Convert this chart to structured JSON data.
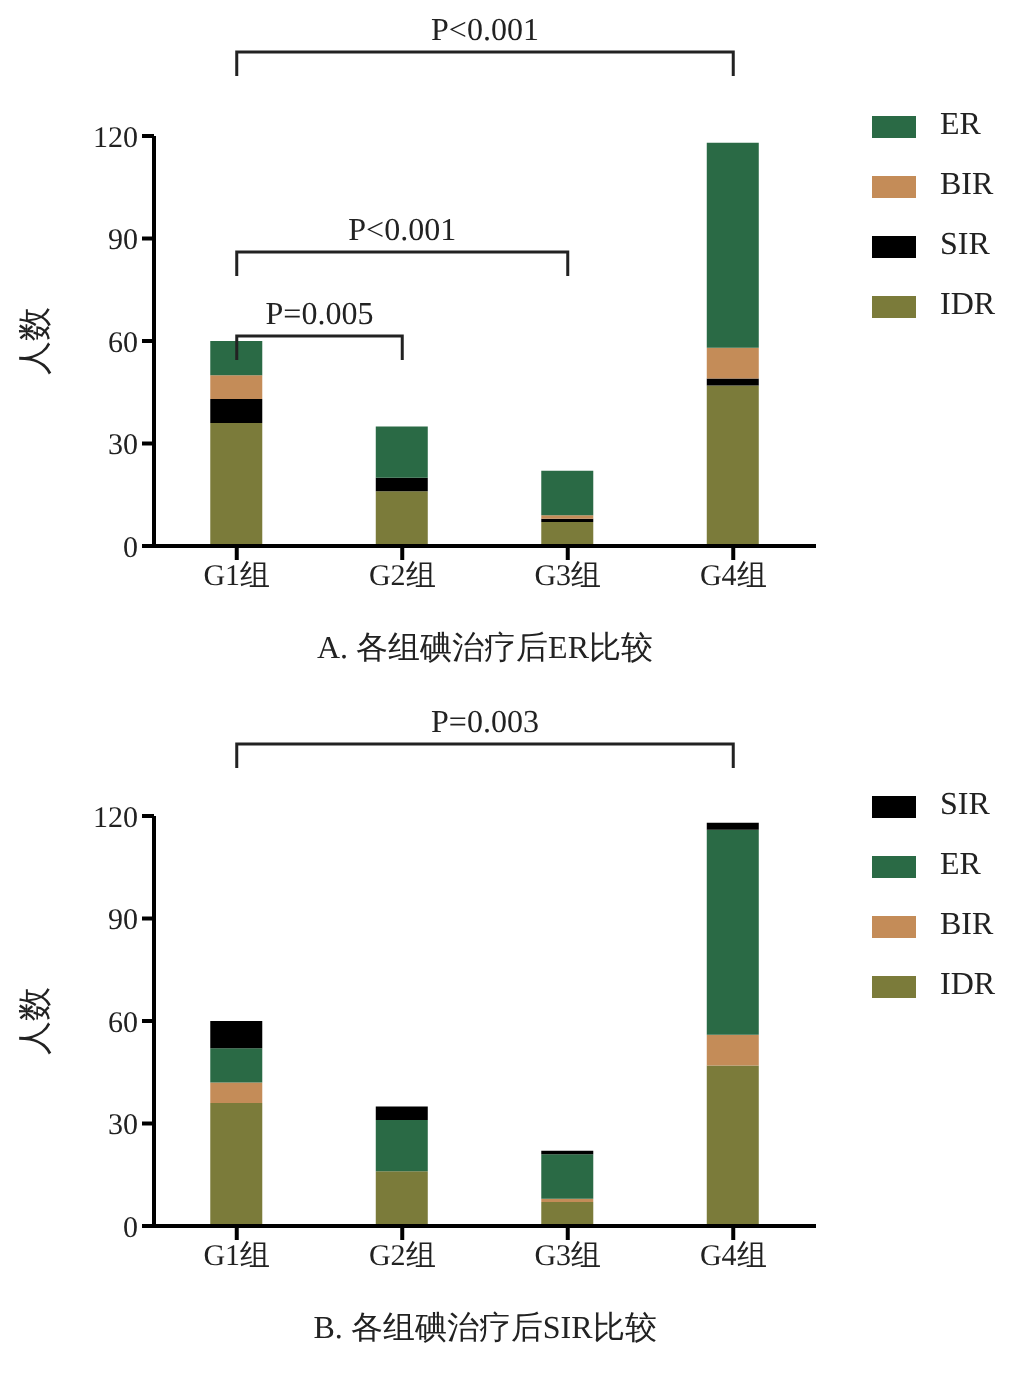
{
  "chart_data": [
    {
      "type": "bar",
      "title": "A. 各组碘治疗后ER比较",
      "ylabel": "人数",
      "categories": [
        "G1组",
        "G2组",
        "G3组",
        "G4组"
      ],
      "stacked": true,
      "series": [
        {
          "name": "IDR",
          "color": "#7b7b3a",
          "values": [
            36,
            16,
            7,
            47
          ]
        },
        {
          "name": "SIR",
          "color": "#000000",
          "values": [
            7,
            4,
            1,
            2
          ]
        },
        {
          "name": "BIR",
          "color": "#c48c58",
          "values": [
            7,
            0,
            1,
            9
          ]
        },
        {
          "name": "ER",
          "color": "#2a6a45",
          "values": [
            10,
            15,
            13,
            60
          ]
        }
      ],
      "ylim": [
        0,
        120
      ],
      "yticks": [
        0,
        30,
        60,
        90,
        120
      ],
      "grid": false,
      "legend": "top right",
      "annotations": [
        "P<0.001",
        "P<0.001",
        "P=0.005"
      ]
    },
    {
      "type": "bar",
      "title": "B. 各组碘治疗后SIR比较",
      "ylabel": "人数",
      "categories": [
        "G1组",
        "G2组",
        "G3组",
        "G4组"
      ],
      "stacked": true,
      "series": [
        {
          "name": "IDR",
          "color": "#7b7b3a",
          "values": [
            36,
            16,
            7,
            47
          ]
        },
        {
          "name": "BIR",
          "color": "#c48c58",
          "values": [
            6,
            0,
            1,
            9
          ]
        },
        {
          "name": "ER",
          "color": "#2a6a45",
          "values": [
            10,
            15,
            13,
            60
          ]
        },
        {
          "name": "SIR",
          "color": "#000000",
          "values": [
            8,
            4,
            1,
            2
          ]
        }
      ],
      "ylim": [
        0,
        120
      ],
      "yticks": [
        0,
        30,
        60,
        90,
        120
      ],
      "grid": false,
      "legend": "top right",
      "annotations": [
        "P=0.003"
      ]
    }
  ]
}
